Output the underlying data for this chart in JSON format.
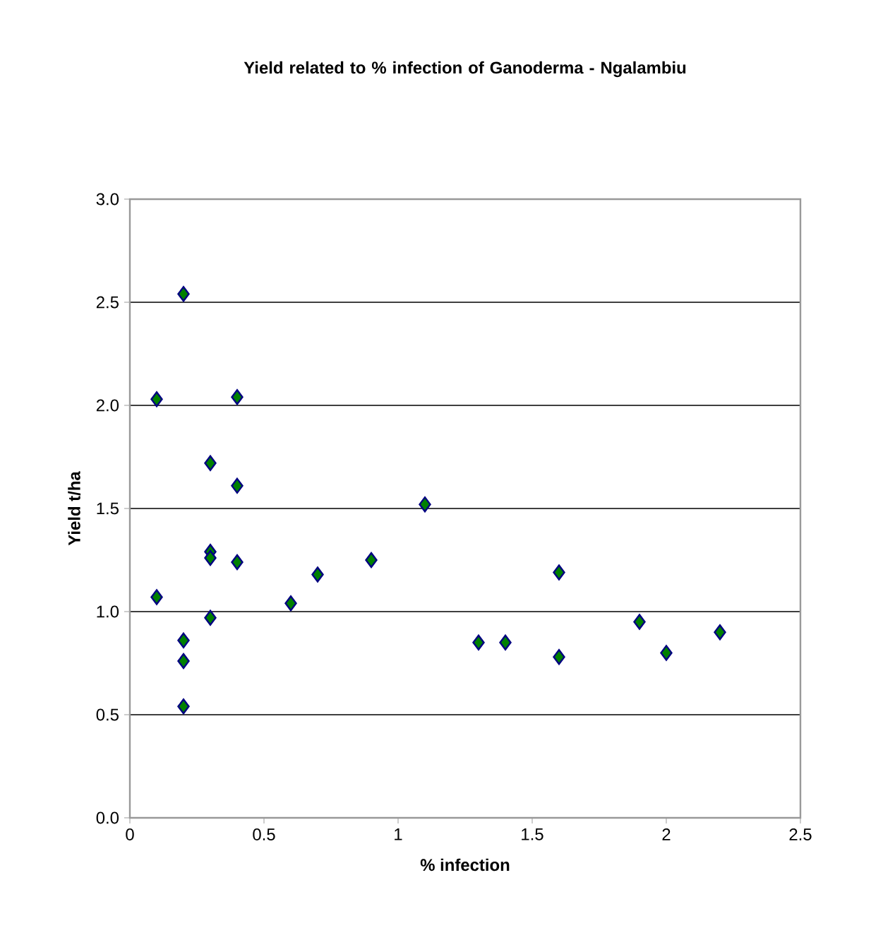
{
  "chart_data": {
    "type": "scatter",
    "title": "Yield related to % infection of Ganoderma - Ngalambiu",
    "xlabel": "% infection",
    "ylabel": "Yield  t/ha",
    "x": [
      0.1,
      0.1,
      0.2,
      0.2,
      0.2,
      0.2,
      0.3,
      0.3,
      0.3,
      0.3,
      0.4,
      0.4,
      0.4,
      0.6,
      0.7,
      0.9,
      1.1,
      1.3,
      1.4,
      1.6,
      1.6,
      1.9,
      2.0,
      2.2
    ],
    "values": [
      2.03,
      1.07,
      2.54,
      0.86,
      0.76,
      0.54,
      1.72,
      1.29,
      1.26,
      0.97,
      2.04,
      1.61,
      1.24,
      1.04,
      1.18,
      1.25,
      1.52,
      0.85,
      0.85,
      1.19,
      0.78,
      0.95,
      0.8,
      0.9
    ],
    "color": "#008000",
    "marker": "diamond",
    "grid": "y",
    "xlim": [
      0,
      2.5
    ],
    "xticks": [
      0,
      0.5,
      1,
      1.5,
      2,
      2.5
    ],
    "ylim": [
      0,
      3
    ],
    "yticks": [
      {
        "value": 0,
        "label": "0.0"
      },
      {
        "value": 0.5,
        "label": "0.5"
      },
      {
        "value": 1,
        "label": "1.0"
      },
      {
        "value": 1.5,
        "label": "1.5"
      },
      {
        "value": 2,
        "label": "2.0"
      },
      {
        "value": 2.5,
        "label": "2.5"
      },
      {
        "value": 3,
        "label": "3.0"
      }
    ]
  }
}
